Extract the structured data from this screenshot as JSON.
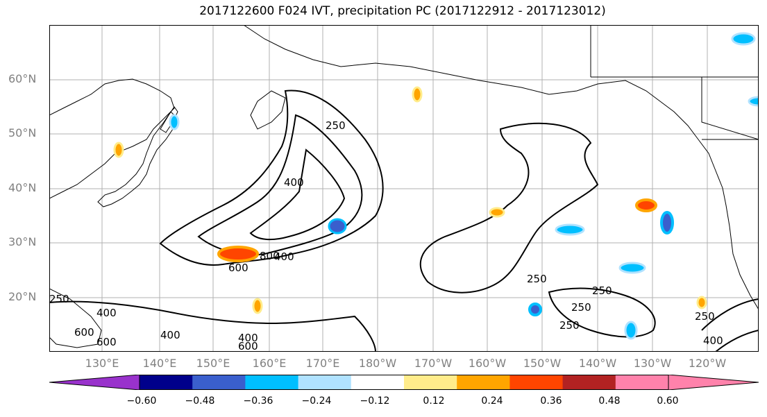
{
  "title": "2017122600 F024 IVT, precipitation PC (2017122912 - 2017123012)",
  "lat_labels": [
    "60°N",
    "50°N",
    "40°N",
    "30°N",
    "20°N"
  ],
  "lon_labels": [
    "130°E",
    "140°E",
    "150°E",
    "160°E",
    "170°E",
    "180°W",
    "170°W",
    "160°W",
    "150°W",
    "140°W",
    "130°W",
    "120°W"
  ],
  "contour_labels": [
    "250",
    "400",
    "600",
    "800",
    "400",
    "250",
    "250",
    "400",
    "600",
    "400",
    "600",
    "250",
    "250",
    "250",
    "250",
    "400",
    "400",
    "600"
  ],
  "colorbar": {
    "ticks": [
      "−0.60",
      "−0.48",
      "−0.36",
      "−0.24",
      "−0.12",
      "0.12",
      "0.24",
      "0.36",
      "0.48",
      "0.60"
    ],
    "colors": [
      "#9932cc",
      "#00008b",
      "#3a5fcd",
      "#00bfff",
      "#b0e2ff",
      "#ffffff",
      "#ffec8b",
      "#ffa500",
      "#ff4500",
      "#b22222",
      "#ff82ab",
      "#ff82ab"
    ]
  }
}
